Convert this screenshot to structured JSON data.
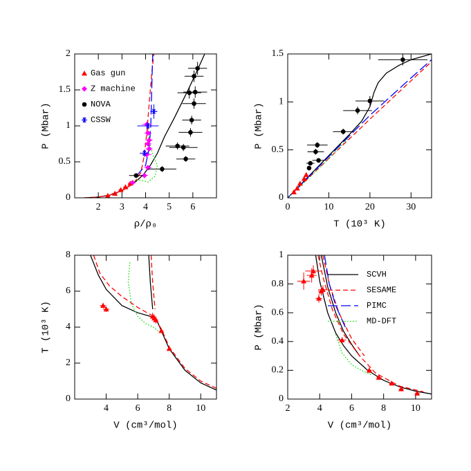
{
  "chart_data": [
    {
      "type": "line",
      "xlabel": "ρ/ρ₀",
      "ylabel": "P (Mbar)",
      "xlim": [
        1,
        7
      ],
      "ylim": [
        0,
        2
      ],
      "xticks": [
        2,
        3,
        4,
        5,
        6
      ],
      "yticks": [
        0,
        0.5,
        1,
        1.5,
        2
      ],
      "legend": "upper left",
      "series": [
        {
          "color": "#000000",
          "dash": "solid",
          "x": [
            1.4,
            2,
            2.5,
            3,
            3.5,
            3.9,
            4.2,
            4.5,
            4.8,
            5.2,
            5.5,
            5.8,
            6.2,
            6.5
          ],
          "values": [
            0,
            0.01,
            0.04,
            0.1,
            0.2,
            0.32,
            0.45,
            0.62,
            0.85,
            1.1,
            1.3,
            1.5,
            1.78,
            2.0
          ]
        },
        {
          "color": "#ff0000",
          "dash": "dashed",
          "x": [
            1.4,
            2,
            2.5,
            3,
            3.5,
            3.8,
            3.95,
            4.05,
            4.15,
            4.25,
            4.35
          ],
          "values": [
            0,
            0.01,
            0.04,
            0.1,
            0.2,
            0.35,
            0.6,
            0.9,
            1.3,
            1.7,
            2.0
          ]
        },
        {
          "color": "#0000ff",
          "dash": "long-dashed",
          "x": [
            3.6,
            4.0,
            4.15,
            4.22,
            4.26,
            4.3
          ],
          "values": [
            0.3,
            0.45,
            0.7,
            1.0,
            1.5,
            2.0
          ]
        },
        {
          "color": "#00dd00",
          "dash": "dotted",
          "x": [
            3.3,
            3.7,
            4.1,
            4.4,
            4.5,
            4.3,
            4.15,
            4.1
          ],
          "values": [
            0.2,
            0.25,
            0.22,
            0.3,
            0.45,
            0.6,
            0.8,
            1.0
          ]
        },
        {
          "name": "Gas gun",
          "color": "#ff0000",
          "marker": "triangle",
          "x": [
            2.4,
            2.7,
            2.95,
            3.15,
            3.35
          ],
          "values": [
            0.03,
            0.06,
            0.11,
            0.15,
            0.2
          ],
          "xerr": [
            0.1,
            0.1,
            0.1,
            0.1,
            0.1
          ]
        },
        {
          "name": "Z machine",
          "color": "#ff00ff",
          "marker": "diamond",
          "x": [
            3.45,
            3.95,
            4.1,
            4.05,
            4.15,
            4.1,
            4.15,
            4.1,
            4.05
          ],
          "values": [
            0.21,
            0.31,
            0.42,
            0.6,
            0.68,
            0.75,
            0.8,
            0.9,
            1.02
          ],
          "xerr": [
            0.1,
            0.15,
            0.15,
            0.2,
            0.15,
            0.15,
            0.15,
            0.15,
            0.2
          ]
        },
        {
          "name": "NOVA",
          "color": "#000000",
          "marker": "circle",
          "x": [
            3.6,
            4.7,
            5.35,
            5.6,
            5.7,
            5.9,
            5.95,
            5.85,
            6.05,
            6.1,
            6.05,
            6.2
          ],
          "values": [
            0.31,
            0.4,
            0.72,
            0.7,
            0.54,
            0.91,
            1.08,
            1.46,
            1.31,
            1.47,
            1.69,
            1.8
          ],
          "xerr": [
            0.3,
            0.6,
            0.5,
            0.6,
            0.4,
            0.5,
            0.4,
            0.5,
            0.5,
            0.5,
            0.4,
            0.4
          ],
          "yerr": [
            0.03,
            0.04,
            0.05,
            0.05,
            0.04,
            0.06,
            0.06,
            0.08,
            0.07,
            0.08,
            0.08,
            0.09
          ]
        },
        {
          "name": "CSSW",
          "color": "#0000ff",
          "marker": "asterisk",
          "x": [
            3.95,
            4.1,
            4.35
          ],
          "values": [
            0.62,
            1.0,
            1.2
          ],
          "xerr": [
            0.2,
            0.45,
            0.15
          ],
          "yerr": [
            0.05,
            0.05,
            0.1
          ]
        }
      ]
    },
    {
      "type": "line",
      "xlabel": "T (10³ K)",
      "ylabel": "P (Mbar)",
      "xlim": [
        0,
        35
      ],
      "ylim": [
        0,
        1.5
      ],
      "xticks": [
        0,
        10,
        20,
        30
      ],
      "yticks": [
        0,
        0.5,
        1,
        1.5
      ],
      "series": [
        {
          "color": "#000000",
          "dash": "solid",
          "x": [
            0,
            5,
            10,
            15,
            18,
            20,
            21,
            22,
            24,
            27,
            30,
            35
          ],
          "values": [
            0,
            0.22,
            0.44,
            0.66,
            0.8,
            0.95,
            1.1,
            1.2,
            1.3,
            1.38,
            1.44,
            1.5
          ]
        },
        {
          "color": "#ff0000",
          "dash": "dashed",
          "x": [
            0,
            10,
            20,
            30,
            35
          ],
          "values": [
            0,
            0.41,
            0.82,
            1.22,
            1.42
          ]
        },
        {
          "color": "#0000ff",
          "dash": "long-dashed",
          "x": [
            0,
            10,
            20,
            30,
            35
          ],
          "values": [
            0,
            0.43,
            0.86,
            1.25,
            1.44
          ]
        },
        {
          "color": "#00dd00",
          "dash": "dotted",
          "x": [
            0,
            5,
            10,
            15
          ],
          "values": [
            0,
            0.2,
            0.41,
            0.63
          ]
        },
        {
          "color": "#ff0000",
          "marker": "triangle",
          "x": [
            1.5,
            2.3,
            3,
            4,
            4.5
          ],
          "values": [
            0.06,
            0.1,
            0.15,
            0.2,
            0.24
          ],
          "xerr": [
            0.3,
            0.3,
            0.3,
            0.3,
            0.3
          ]
        },
        {
          "color": "#000000",
          "marker": "circle",
          "x": [
            5.2,
            5.5,
            6.8,
            7.2,
            7.5,
            13.5,
            17,
            20,
            28
          ],
          "values": [
            0.31,
            0.36,
            0.48,
            0.55,
            0.39,
            0.69,
            0.91,
            1.01,
            1.44
          ],
          "xerr": [
            0.5,
            1,
            2,
            2.5,
            1.5,
            2.5,
            3.5,
            3.5,
            6
          ],
          "yerr": [
            0.02,
            0.02,
            0.03,
            0.03,
            0.02,
            0.03,
            0.04,
            0.05,
            0.06
          ]
        }
      ]
    },
    {
      "type": "line",
      "xlabel": "V (cm³/mol)",
      "ylabel": "T (10³ K)",
      "xlim": [
        2,
        11
      ],
      "ylim": [
        0,
        8
      ],
      "xticks": [
        4,
        6,
        8,
        10
      ],
      "yticks": [
        0,
        2,
        4,
        6,
        8
      ],
      "series": [
        {
          "color": "#000000",
          "dash": "solid",
          "x": [
            3.0,
            3.5,
            4,
            5,
            6,
            6.8,
            7.2,
            7.5,
            8,
            9,
            10,
            11,
            null,
            6.7,
            6.8,
            6.95
          ],
          "values": [
            8,
            6.9,
            6.1,
            5.2,
            4.8,
            4.6,
            4.4,
            3.8,
            2.8,
            1.6,
            0.9,
            0.5,
            null,
            8,
            6.5,
            5
          ]
        },
        {
          "color": "#ff0000",
          "dash": "dashed",
          "x": [
            3.2,
            3.6,
            4.2,
            5,
            6,
            7,
            7.5,
            8,
            9,
            10,
            11,
            null,
            6.85,
            6.95,
            7.1
          ],
          "values": [
            8,
            7,
            6.3,
            5.7,
            5.1,
            4.6,
            3.9,
            2.9,
            1.7,
            1.0,
            0.6,
            null,
            8,
            6.5,
            5
          ]
        },
        {
          "color": "#00dd00",
          "dash": "dotted",
          "x": [
            5.5,
            5.4,
            5.6,
            6.0,
            6.5,
            7.0,
            7.4
          ],
          "values": [
            7.6,
            6.5,
            5.3,
            4.6,
            4.2,
            4.0,
            3.7
          ]
        },
        {
          "color": "#ff0000",
          "marker": "triangle",
          "x": [
            3.8,
            4.0,
            6.95,
            7.05,
            7.15,
            7.5,
            8.0
          ],
          "values": [
            5.2,
            5.0,
            4.6,
            4.5,
            4.4,
            3.8,
            2.8
          ],
          "xerr": [
            0.2,
            0.2,
            0.15,
            0.15,
            0.15,
            0.1,
            0.1
          ],
          "yerr": [
            0.15,
            0.15,
            0.2,
            0.2,
            0.2,
            0.1,
            0.1
          ]
        }
      ]
    },
    {
      "type": "line",
      "xlabel": "V (cm³/mol)",
      "ylabel": "P (Mbar)",
      "xlim": [
        2,
        11
      ],
      "ylim": [
        0,
        1
      ],
      "xticks": [
        2,
        4,
        6,
        8,
        10
      ],
      "yticks": [
        0,
        0.2,
        0.4,
        0.6,
        0.8,
        1
      ],
      "legend": "upper right",
      "series": [
        {
          "name": "SCVH",
          "color": "#000000",
          "dash": "solid",
          "x": [
            3.75,
            4,
            4.5,
            5,
            5.5,
            6,
            7,
            8,
            9,
            10,
            11,
            null,
            4.1,
            4.5,
            5,
            5.5,
            6,
            6.5
          ],
          "values": [
            1,
            0.82,
            0.6,
            0.46,
            0.37,
            0.3,
            0.2,
            0.13,
            0.085,
            0.055,
            0.035,
            null,
            1,
            0.78,
            0.6,
            0.47,
            0.38,
            0.3
          ]
        },
        {
          "name": "SESAME",
          "color": "#ff0000",
          "dash": "dashed",
          "x": [
            3.9,
            4.2,
            4.8,
            5.5,
            6.5,
            7.5,
            9,
            10.5,
            null,
            4.2,
            4.6,
            5.2,
            6,
            6.8
          ],
          "values": [
            1,
            0.85,
            0.62,
            0.45,
            0.3,
            0.18,
            0.09,
            0.05,
            null,
            1,
            0.8,
            0.6,
            0.42,
            0.3
          ]
        },
        {
          "name": "PIMC",
          "color": "#0000ff",
          "dash": "long-dashed",
          "x": [
            4.3,
            4.6,
            5,
            5.6
          ],
          "values": [
            1,
            0.8,
            0.65,
            0.5
          ]
        },
        {
          "name": "MD-DFT",
          "color": "#00dd00",
          "dash": "dotted",
          "x": [
            5,
            5.4,
            6,
            6.6,
            7.2
          ],
          "values": [
            0.45,
            0.32,
            0.24,
            0.2,
            0.17
          ]
        },
        {
          "color": "#ff0000",
          "marker": "triangle",
          "x": [
            3.0,
            3.5,
            3.6,
            3.95,
            4.1,
            4.2,
            5.4,
            7.1,
            7.7,
            8.5,
            9.1,
            10.1
          ],
          "values": [
            0.82,
            0.86,
            0.89,
            0.7,
            0.75,
            0.76,
            0.41,
            0.2,
            0.15,
            0.11,
            0.07,
            0.04
          ],
          "xerr": [
            0.4,
            0.3,
            0.5,
            0.2,
            0.2,
            0.3,
            0.25,
            0.15,
            0.15,
            0.15,
            0.15,
            0.15
          ],
          "yerr": [
            0.06,
            0.05,
            0.04,
            0.03,
            0.03,
            0.03,
            0.02,
            0.02,
            0.01,
            0.01,
            0.01,
            0.01
          ]
        }
      ]
    }
  ]
}
